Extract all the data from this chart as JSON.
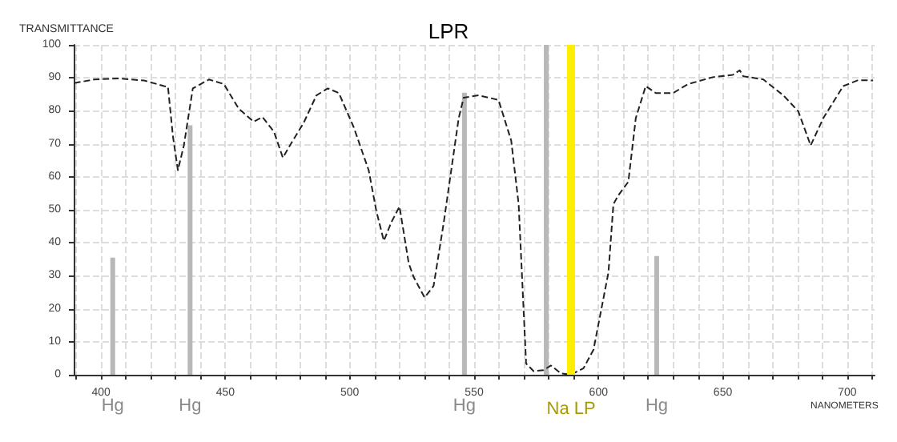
{
  "chart_data": {
    "type": "line",
    "title": "LPR",
    "xlabel": "NANOMETERS",
    "ylabel": "TRANSMITTANCE",
    "xlim": [
      389,
      711
    ],
    "ylim": [
      0,
      100
    ],
    "xticks": [
      {
        "value": 390,
        "label": null
      },
      400,
      {
        "value": 410,
        "label": null
      },
      {
        "value": 420,
        "label": null
      },
      {
        "value": 430,
        "label": null
      },
      {
        "value": 440,
        "label": null
      },
      450,
      {
        "value": 460,
        "label": null
      },
      {
        "value": 470,
        "label": null
      },
      {
        "value": 480,
        "label": null
      },
      {
        "value": 490,
        "label": null
      },
      500,
      {
        "value": 510,
        "label": null
      },
      {
        "value": 520,
        "label": null
      },
      {
        "value": 530,
        "label": null
      },
      {
        "value": 540,
        "label": null
      },
      550,
      {
        "value": 560,
        "label": null
      },
      {
        "value": 570,
        "label": null
      },
      {
        "value": 580,
        "label": null
      },
      {
        "value": 590,
        "label": null
      },
      600,
      {
        "value": 610,
        "label": null
      },
      {
        "value": 620,
        "label": null
      },
      {
        "value": 630,
        "label": null
      },
      {
        "value": 640,
        "label": null
      },
      650,
      {
        "value": 660,
        "label": null
      },
      {
        "value": 670,
        "label": null
      },
      {
        "value": 680,
        "label": null
      },
      {
        "value": 690,
        "label": null
      },
      700,
      {
        "value": 710,
        "label": null
      }
    ],
    "yticks": [
      0,
      10,
      20,
      30,
      40,
      50,
      60,
      70,
      80,
      90,
      100
    ],
    "grid": true,
    "line_style": "dashed",
    "marker": "none",
    "series": [
      {
        "color": "#222222",
        "x": [
          389.2,
          397.2,
          407.2,
          417.3,
          425.3,
          426.9,
          428.9,
          430.9,
          433.3,
          436.9,
          443.4,
          449.4,
          455.4,
          461.4,
          464.9,
          469.5,
          473.1,
          476.5,
          481.5,
          486.6,
          491.2,
          495.6,
          501.6,
          507.6,
          510.7,
          513.7,
          516.7,
          520,
          523.7,
          525.7,
          530.1,
          533.7,
          537.8,
          543.8,
          545.8,
          551.8,
          559.8,
          564.9,
          567.9,
          570.9,
          573.9,
          577.9,
          580.9,
          584.9,
          589,
          594,
          598,
          604,
          606,
          608,
          612,
          615,
          619,
          623,
          630,
          636,
          646,
          654,
          656.8,
          658.2,
          666.3,
          674.3,
          680.3,
          685.3,
          690.4,
          698.4,
          704.4,
          710.4
        ],
        "values": [
          88.4,
          89.5,
          89.8,
          89.2,
          87.5,
          87.3,
          72.3,
          62,
          69.5,
          86.8,
          89.5,
          88.1,
          80.6,
          76.7,
          78.1,
          73.7,
          65.8,
          70.2,
          76.4,
          84.7,
          86.8,
          85.4,
          75,
          62,
          49.6,
          40.6,
          46.2,
          51,
          33.8,
          29.6,
          23.4,
          26.9,
          46.2,
          77.8,
          84,
          84.7,
          83.3,
          71,
          51.7,
          3.4,
          1.1,
          1.4,
          2.8,
          0.4,
          0,
          2,
          7.6,
          31,
          51.7,
          54.4,
          58.5,
          77.8,
          87.5,
          85.4,
          85.4,
          88.1,
          90.2,
          90.9,
          92.3,
          90.5,
          89.5,
          84.7,
          79.9,
          69.5,
          77.8,
          87.5,
          89.3,
          89.2
        ]
      },
      {
        "type": "bar",
        "color": "#b8b8b8",
        "x": [
          404.7,
          435.8,
          546.1,
          579,
          623.4
        ],
        "values": [
          35.5,
          75.6,
          85.5,
          100,
          36
        ],
        "value_labels": [
          "Hg",
          "Hg",
          "Hg",
          null,
          "Hg"
        ]
      }
    ],
    "ref_lines": [
      {
        "axis": "x",
        "value": 589,
        "label": "Na LP",
        "color": "#ffee00"
      }
    ]
  }
}
